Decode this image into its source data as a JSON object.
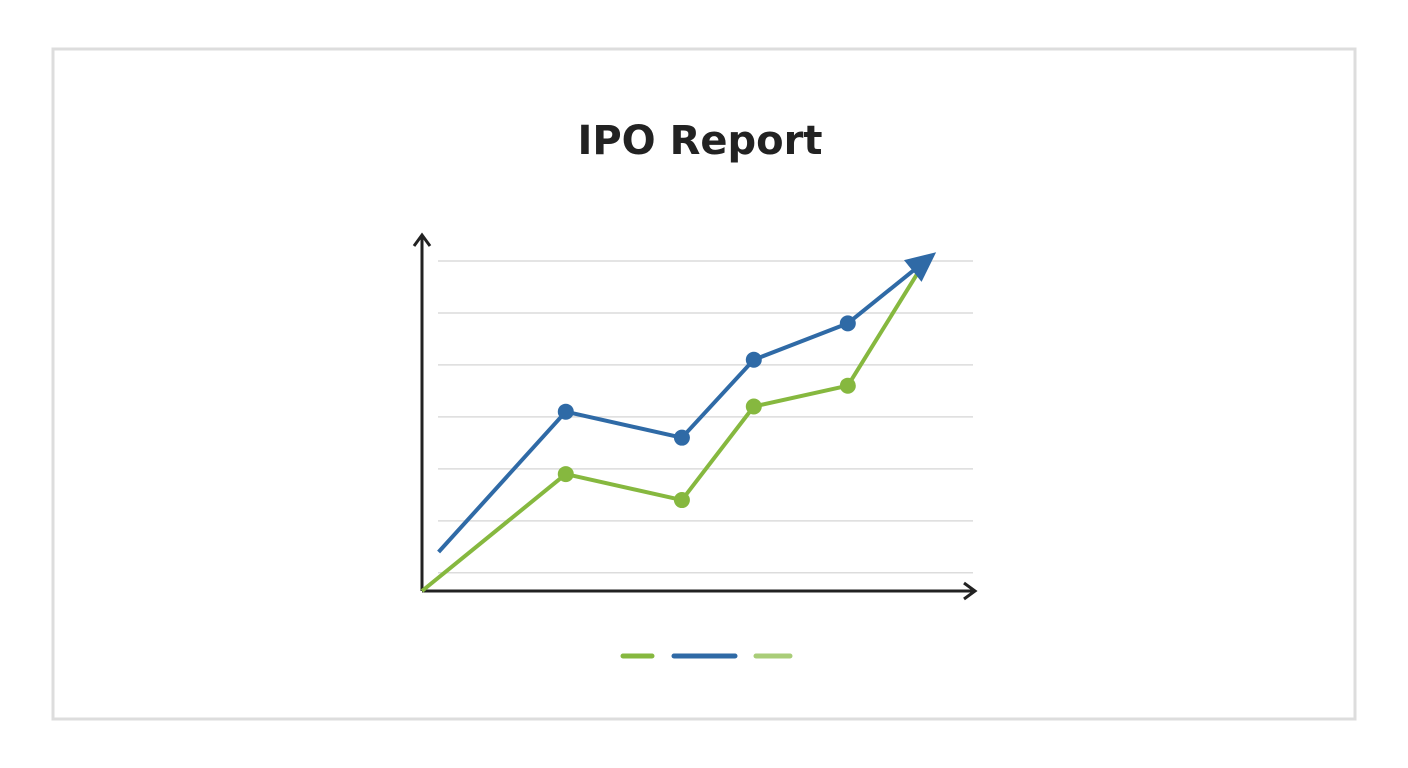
{
  "chart_data": {
    "type": "line",
    "title": "IPO Report",
    "xlim": [
      0,
      10
    ],
    "ylim": [
      -0.35,
      6.5
    ],
    "yticks": [
      0,
      1,
      2,
      3,
      4,
      5,
      6
    ],
    "grid": true,
    "series": [
      {
        "color": "#86b83f",
        "x": [
          0,
          2.6,
          4.7,
          6.0,
          7.7,
          9.1
        ],
        "values": [
          -0.35,
          1.9,
          1.4,
          3.2,
          3.6,
          6.0
        ]
      },
      {
        "color": "#2f6aa6",
        "x": [
          0.3,
          2.6,
          4.7,
          6.0,
          7.7,
          9.1
        ],
        "values": [
          0.4,
          3.1,
          2.6,
          4.1,
          4.8,
          6.0
        ]
      }
    ]
  }
}
